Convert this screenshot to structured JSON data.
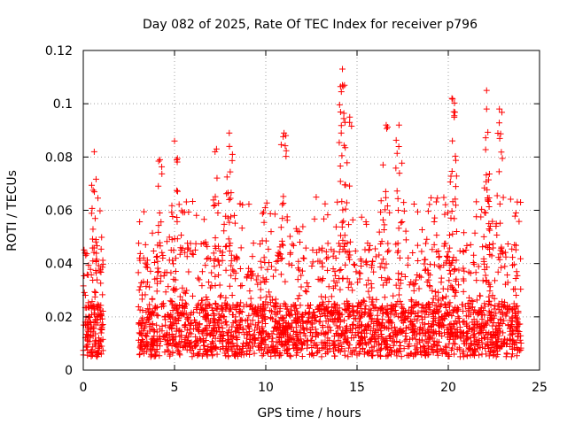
{
  "chart_data": {
    "type": "scatter",
    "title": "Day 082 of 2025, Rate Of TEC Index for receiver p796",
    "xlabel": "GPS time / hours",
    "ylabel": "ROTI / TECUs",
    "xlim": [
      0,
      25
    ],
    "ylim": [
      0,
      0.12
    ],
    "xticks": [
      0,
      5,
      10,
      15,
      20,
      25
    ],
    "yticks": [
      0,
      0.02,
      0.04,
      0.06,
      0.08,
      0.1,
      0.12
    ],
    "xtick_labels": [
      "0",
      "5",
      "10",
      "15",
      "20",
      "25"
    ],
    "ytick_labels": [
      "0",
      "0.02",
      "0.04",
      "0.06",
      "0.08",
      "0.1",
      "0.12"
    ],
    "grid": true,
    "marker": "+",
    "color": "#ff0000",
    "series": [
      {
        "x_range": [
          0.0,
          24.0
        ],
        "data_gap_hours": [
          1.1,
          3.0
        ],
        "typical_y_range": [
          0.0,
          0.04
        ],
        "peaks": [
          {
            "x": 0.6,
            "y": 0.082
          },
          {
            "x": 4.2,
            "y": 0.079
          },
          {
            "x": 5.0,
            "y": 0.086
          },
          {
            "x": 7.3,
            "y": 0.083
          },
          {
            "x": 8.0,
            "y": 0.089
          },
          {
            "x": 11.0,
            "y": 0.089
          },
          {
            "x": 14.2,
            "y": 0.113
          },
          {
            "x": 14.2,
            "y": 0.107
          },
          {
            "x": 14.6,
            "y": 0.095
          },
          {
            "x": 16.6,
            "y": 0.092
          },
          {
            "x": 17.3,
            "y": 0.092
          },
          {
            "x": 20.2,
            "y": 0.102
          },
          {
            "x": 20.3,
            "y": 0.097
          },
          {
            "x": 22.1,
            "y": 0.105
          },
          {
            "x": 22.1,
            "y": 0.098
          },
          {
            "x": 22.8,
            "y": 0.098
          }
        ]
      }
    ]
  }
}
